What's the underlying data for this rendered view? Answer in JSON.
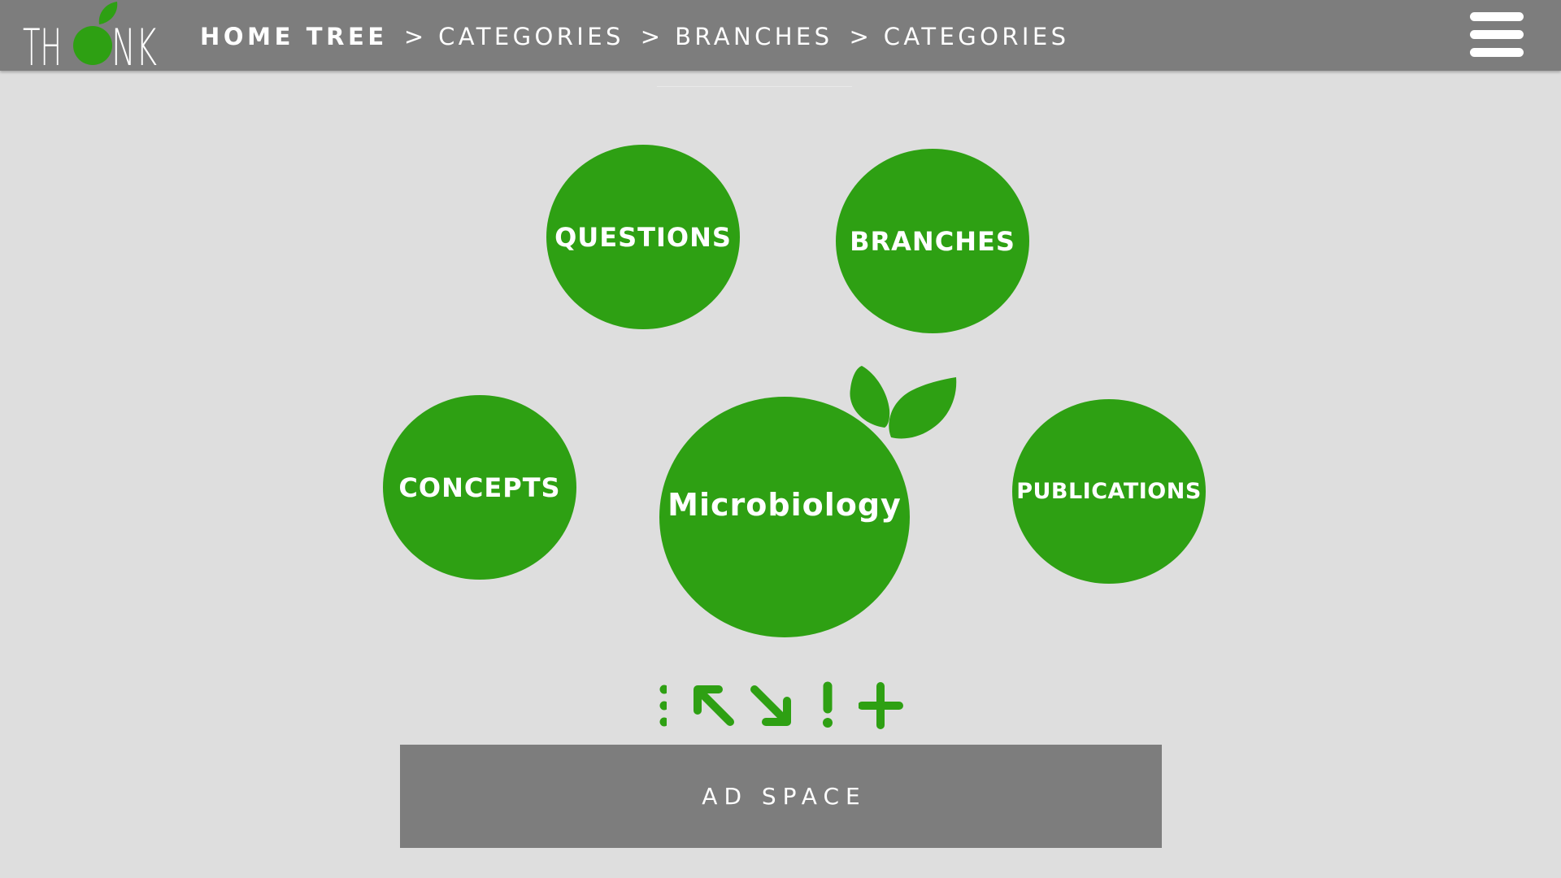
{
  "header": {
    "logo": {
      "text": "THINK",
      "icon": "apple-leaf-logo"
    },
    "breadcrumb": {
      "items": [
        "HOME TREE",
        "CATEGORIES",
        "BRANCHES",
        "CATEGORIES"
      ],
      "separator": ">"
    },
    "menu_icon": "hamburger-menu-icon"
  },
  "nodes": {
    "questions": "QUESTIONS",
    "branches": "BRANCHES",
    "concepts": "CONCEPTS",
    "center": "Microbiology",
    "publications": "PUBLICATIONS"
  },
  "toolbar": {
    "icons": [
      "more-vertical-icon",
      "arrow-up-left-icon",
      "arrow-down-right-icon",
      "exclamation-icon",
      "plus-icon"
    ]
  },
  "ad_space": {
    "label": "AD SPACE"
  },
  "colors": {
    "accent": "#2ea013",
    "header_bg": "#7d7d7d",
    "page_bg": "#dedede",
    "text_on_accent": "#ffffff"
  }
}
